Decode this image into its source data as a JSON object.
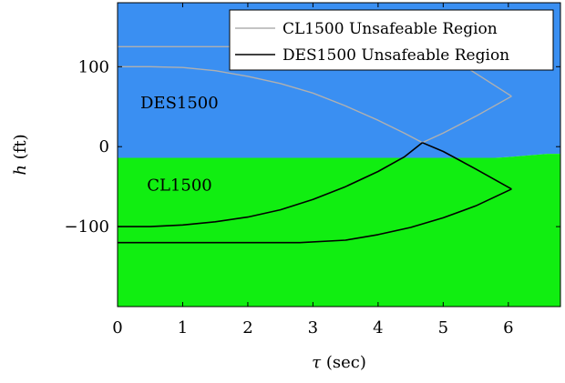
{
  "chart_data": {
    "type": "area",
    "title": "",
    "xlabel_symbol": "τ",
    "xlabel_unit": " (sec)",
    "ylabel_symbol": "h",
    "ylabel_unit": " (ft)",
    "xlim": [
      0,
      6.8
    ],
    "ylim": [
      -200,
      180
    ],
    "xticks": [
      0,
      1,
      2,
      3,
      4,
      5,
      6
    ],
    "xtick_labels": [
      "0",
      "1",
      "2",
      "3",
      "4",
      "5",
      "6"
    ],
    "yticks": [
      100,
      0,
      -100
    ],
    "ytick_labels": [
      "100",
      "0",
      "−100"
    ],
    "grid": false,
    "legend_position": "top-right",
    "colors": {
      "des1500_region": "#3a8ff2",
      "cl1500_region": "#11ee11",
      "cl1500_boundary": "#b0b0b0",
      "des1500_boundary": "#000000",
      "frame": "#000000"
    },
    "regions": [
      {
        "name": "DES1500",
        "label": "DES1500",
        "label_at": [
          0.35,
          48
        ],
        "boundary": [
          [
            0,
            180
          ],
          [
            6.8,
            180
          ],
          [
            6.8,
            -9
          ],
          [
            6.6,
            -9
          ],
          [
            6.0,
            -13
          ],
          [
            5.8,
            -14
          ],
          [
            0,
            -14
          ]
        ]
      },
      {
        "name": "CL1500",
        "label": "CL1500",
        "label_at": [
          0.45,
          -55
        ],
        "boundary": [
          [
            0,
            -14
          ],
          [
            5.8,
            -14
          ],
          [
            6.0,
            -13
          ],
          [
            6.6,
            -9
          ],
          [
            6.8,
            -9
          ],
          [
            6.8,
            -200
          ],
          [
            0,
            -200
          ]
        ]
      }
    ],
    "series": [
      {
        "name": "CL1500 Unsafeable Region",
        "color": "#b0b0b0",
        "segments": [
          [
            [
              0,
              125
            ],
            [
              4.0,
              125
            ],
            [
              4.6,
              121
            ],
            [
              5.3,
              102
            ],
            [
              6.05,
              63
            ]
          ],
          [
            [
              0,
              100
            ],
            [
              0.5,
              100
            ],
            [
              1.0,
              99
            ],
            [
              1.5,
              95
            ],
            [
              2.0,
              88
            ],
            [
              2.5,
              79
            ],
            [
              3.0,
              67
            ],
            [
              3.5,
              51
            ],
            [
              4.0,
              33
            ],
            [
              4.4,
              17
            ],
            [
              4.68,
              5
            ]
          ],
          [
            [
              4.68,
              5
            ],
            [
              5.0,
              17
            ],
            [
              5.5,
              38
            ],
            [
              6.05,
              63
            ]
          ]
        ]
      },
      {
        "name": "DES1500 Unsafeable Region",
        "color": "#000000",
        "segments": [
          [
            [
              0,
              -100
            ],
            [
              0.5,
              -100
            ],
            [
              1.0,
              -98
            ],
            [
              1.5,
              -94
            ],
            [
              2.0,
              -88
            ],
            [
              2.5,
              -79
            ],
            [
              3.0,
              -66
            ],
            [
              3.5,
              -50
            ],
            [
              4.0,
              -31
            ],
            [
              4.4,
              -13
            ],
            [
              4.68,
              5
            ]
          ],
          [
            [
              4.68,
              5
            ],
            [
              5.0,
              -6
            ],
            [
              5.5,
              -28
            ],
            [
              6.05,
              -53
            ]
          ],
          [
            [
              0,
              -120
            ],
            [
              2.0,
              -120
            ],
            [
              2.8,
              -120
            ],
            [
              3.5,
              -117
            ],
            [
              4.0,
              -110
            ],
            [
              4.5,
              -101
            ],
            [
              5.0,
              -89
            ],
            [
              5.5,
              -74
            ],
            [
              6.05,
              -53
            ]
          ]
        ]
      }
    ]
  }
}
